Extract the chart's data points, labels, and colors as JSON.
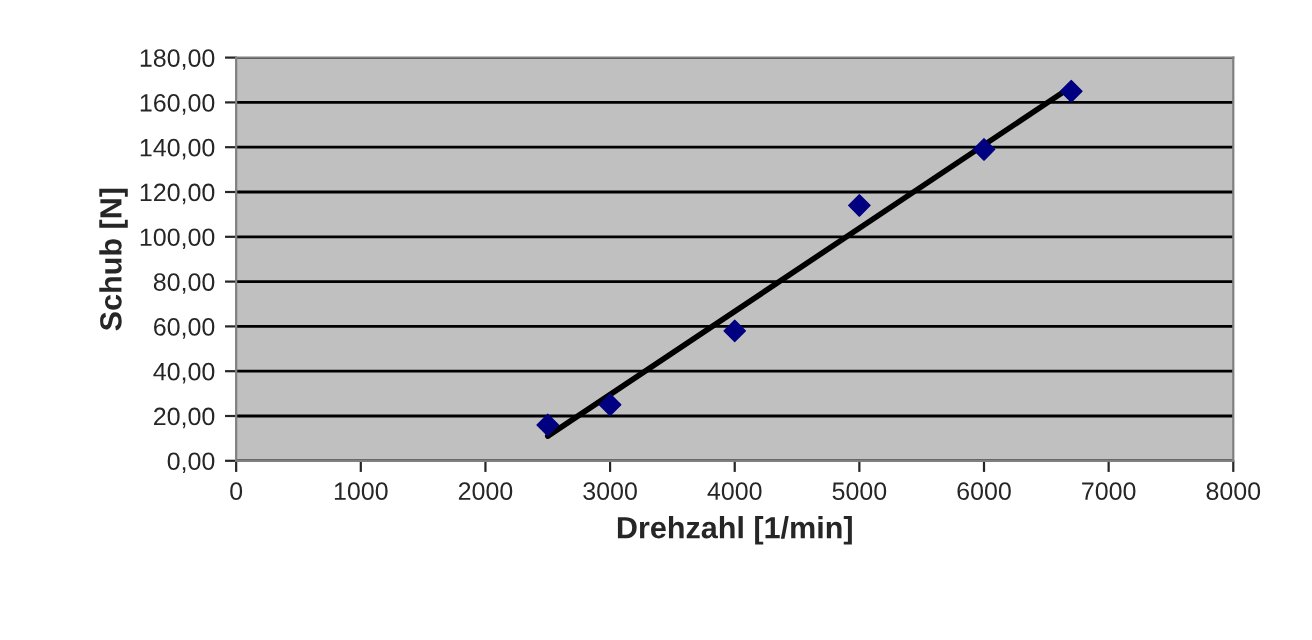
{
  "chart_data": {
    "type": "scatter",
    "xlabel": "Drehzahl [1/min]",
    "ylabel": "Schub [N]",
    "x": [
      2500,
      3000,
      4000,
      5000,
      6000,
      6700
    ],
    "series": [
      {
        "color": "#000080",
        "marker": "diamond",
        "values": [
          16,
          25,
          58,
          114,
          139,
          165
        ]
      },
      {
        "type": "line",
        "color": "#000000",
        "marker": "none",
        "line_style": "solid",
        "x": [
          2500,
          6700
        ],
        "values": [
          11,
          167
        ]
      }
    ],
    "xlim": [
      0,
      8000
    ],
    "xticks": [
      0,
      1000,
      2000,
      3000,
      4000,
      5000,
      6000,
      7000,
      8000
    ],
    "ylim": [
      0,
      180
    ],
    "yticks": [
      {
        "value": 0,
        "label": "0,00"
      },
      {
        "value": 20,
        "label": "20,00"
      },
      {
        "value": 40,
        "label": "40,00"
      },
      {
        "value": 60,
        "label": "60,00"
      },
      {
        "value": 80,
        "label": "80,00"
      },
      {
        "value": 100,
        "label": "100,00"
      },
      {
        "value": 120,
        "label": "120,00"
      },
      {
        "value": 140,
        "label": "140,00"
      },
      {
        "value": 160,
        "label": "160,00"
      },
      {
        "value": 180,
        "label": "180,00"
      }
    ],
    "grid": "y",
    "legend": false
  }
}
